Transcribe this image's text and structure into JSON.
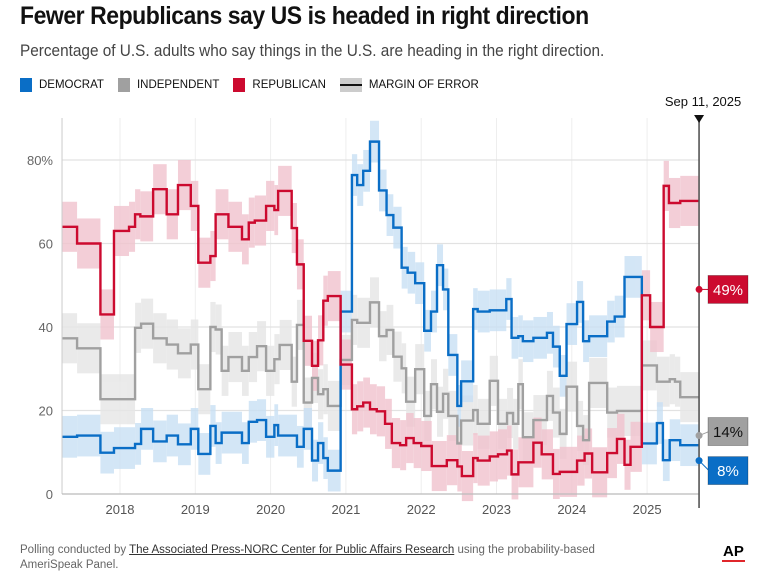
{
  "title": "Fewer Republicans say US is headed in right direction",
  "subtitle": "Percentage of U.S. adults who say things in the U.S. are heading in the right direction.",
  "legend": [
    {
      "label": "DEMOCRAT",
      "color": "#0a6ec6"
    },
    {
      "label": "INDEPENDENT",
      "color": "#a0a0a0"
    },
    {
      "label": "REPUBLICAN",
      "color": "#cc0a2f"
    },
    {
      "label": "MARGIN OF ERROR"
    }
  ],
  "footer": {
    "prefix": "Polling conducted by ",
    "link": "The Associated Press-NORC Center for Public Affairs Research",
    "suffix": " using the probability-based AmeriSpeak Panel.",
    "logo": "AP"
  },
  "chart_data": {
    "type": "line",
    "step": true,
    "title": "Fewer Republicans say US is headed in right direction",
    "xlim": [
      2017.23,
      2025.7
    ],
    "ylim": [
      0,
      90
    ],
    "x_ticks": [
      "2018",
      "2019",
      "2020",
      "2021",
      "2022",
      "2023",
      "2024",
      "2025"
    ],
    "y_ticks": [
      {
        "value": 0,
        "label": "0"
      },
      {
        "value": 20,
        "label": "20"
      },
      {
        "value": 40,
        "label": "40"
      },
      {
        "value": 60,
        "label": "60"
      },
      {
        "value": 80,
        "label": "80%"
      }
    ],
    "grid": true,
    "legend_placement": "top-left",
    "marker": {
      "label": "Sep 11, 2025",
      "x": 2025.69
    },
    "series": [
      {
        "name": "INDEPENDENT",
        "color": "#a0a0a0",
        "band_color": "#e6e6e6",
        "moe": 6,
        "end_label": "14%",
        "end_value": 14,
        "points": [
          [
            2017.23,
            37.3
          ],
          [
            2017.43,
            34.9
          ],
          [
            2017.74,
            22.7
          ],
          [
            2018.2,
            39.8
          ],
          [
            2018.28,
            40.8
          ],
          [
            2018.44,
            37.3
          ],
          [
            2018.62,
            35.8
          ],
          [
            2018.77,
            33.7
          ],
          [
            2018.94,
            35.8
          ],
          [
            2019.04,
            25.1
          ],
          [
            2019.2,
            40
          ],
          [
            2019.27,
            39.4
          ],
          [
            2019.35,
            29.5
          ],
          [
            2019.44,
            32.8
          ],
          [
            2019.62,
            29.5
          ],
          [
            2019.71,
            32.8
          ],
          [
            2019.82,
            35.4
          ],
          [
            2019.94,
            29.5
          ],
          [
            2020.05,
            32.3
          ],
          [
            2020.12,
            35.7
          ],
          [
            2020.28,
            26.9
          ],
          [
            2020.35,
            40.5
          ],
          [
            2020.44,
            21.9
          ],
          [
            2020.55,
            27.8
          ],
          [
            2020.63,
            23.9
          ],
          [
            2020.7,
            25.1
          ],
          [
            2020.76,
            21.1
          ],
          [
            2020.93,
            32.1
          ],
          [
            2021.08,
            41.7
          ],
          [
            2021.15,
            41
          ],
          [
            2021.32,
            45.9
          ],
          [
            2021.44,
            37.8
          ],
          [
            2021.54,
            39.3
          ],
          [
            2021.63,
            32.9
          ],
          [
            2021.74,
            30.1
          ],
          [
            2021.8,
            22.1
          ],
          [
            2021.92,
            29.9
          ],
          [
            2022.04,
            18.7
          ],
          [
            2022.13,
            26.3
          ],
          [
            2022.21,
            19.7
          ],
          [
            2022.29,
            24
          ],
          [
            2022.36,
            18.7
          ],
          [
            2022.48,
            12.1
          ],
          [
            2022.53,
            17.6
          ],
          [
            2022.69,
            20.1
          ],
          [
            2022.75,
            16.8
          ],
          [
            2022.91,
            27.1
          ],
          [
            2023.02,
            16.8
          ],
          [
            2023.14,
            19.4
          ],
          [
            2023.22,
            16.8
          ],
          [
            2023.29,
            26.3
          ],
          [
            2023.35,
            13.6
          ],
          [
            2023.49,
            17.7
          ],
          [
            2023.67,
            23.5
          ],
          [
            2023.75,
            19.5
          ],
          [
            2023.84,
            14.4
          ],
          [
            2023.93,
            25.7
          ],
          [
            2024.07,
            16.3
          ],
          [
            2024.15,
            12.9
          ],
          [
            2024.23,
            26.6
          ],
          [
            2024.47,
            19.5
          ],
          [
            2024.6,
            19.9
          ],
          [
            2024.93,
            30.8
          ],
          [
            2025.13,
            26.9
          ],
          [
            2025.3,
            27.5
          ],
          [
            2025.37,
            26.9
          ],
          [
            2025.44,
            23.2
          ],
          [
            2025.69,
            14
          ]
        ]
      },
      {
        "name": "DEMOCRAT",
        "color": "#0a6ec6",
        "band_color": "#c9e0f4",
        "moe": 5,
        "end_label": "8%",
        "end_value": 8,
        "points": [
          [
            2017.23,
            13.7
          ],
          [
            2017.43,
            14
          ],
          [
            2017.74,
            9.9
          ],
          [
            2017.92,
            11
          ],
          [
            2018.2,
            12
          ],
          [
            2018.28,
            15.6
          ],
          [
            2018.44,
            12.6
          ],
          [
            2018.62,
            14
          ],
          [
            2018.77,
            11.9
          ],
          [
            2018.94,
            15.6
          ],
          [
            2019.04,
            9.6
          ],
          [
            2019.2,
            16.3
          ],
          [
            2019.27,
            12.2
          ],
          [
            2019.35,
            14.7
          ],
          [
            2019.62,
            12.2
          ],
          [
            2019.71,
            17.3
          ],
          [
            2019.82,
            17.7
          ],
          [
            2019.94,
            13.7
          ],
          [
            2020.05,
            16.5
          ],
          [
            2020.1,
            14
          ],
          [
            2020.35,
            11.3
          ],
          [
            2020.44,
            15.6
          ],
          [
            2020.55,
            8
          ],
          [
            2020.63,
            12.2
          ],
          [
            2020.7,
            8.6
          ],
          [
            2020.76,
            5.6
          ],
          [
            2020.93,
            43.7
          ],
          [
            2021.08,
            76.4
          ],
          [
            2021.15,
            74
          ],
          [
            2021.23,
            77.4
          ],
          [
            2021.32,
            84.4
          ],
          [
            2021.44,
            72.7
          ],
          [
            2021.54,
            66.8
          ],
          [
            2021.63,
            63.8
          ],
          [
            2021.74,
            54.2
          ],
          [
            2021.82,
            53
          ],
          [
            2021.92,
            50.5
          ],
          [
            2022.04,
            39.1
          ],
          [
            2022.13,
            43.7
          ],
          [
            2022.21,
            54.8
          ],
          [
            2022.29,
            49
          ],
          [
            2022.36,
            33.3
          ],
          [
            2022.48,
            21.1
          ],
          [
            2022.53,
            27
          ],
          [
            2022.69,
            44.3
          ],
          [
            2022.75,
            43.7
          ],
          [
            2022.91,
            44
          ],
          [
            2023.13,
            46.7
          ],
          [
            2023.2,
            37.4
          ],
          [
            2023.29,
            37.8
          ],
          [
            2023.35,
            36.6
          ],
          [
            2023.49,
            37.4
          ],
          [
            2023.67,
            38.6
          ],
          [
            2023.75,
            35.3
          ],
          [
            2023.84,
            28.3
          ],
          [
            2023.93,
            40.7
          ],
          [
            2024.07,
            46
          ],
          [
            2024.15,
            36.6
          ],
          [
            2024.23,
            37.8
          ],
          [
            2024.47,
            41.3
          ],
          [
            2024.57,
            42.5
          ],
          [
            2024.7,
            52
          ],
          [
            2024.93,
            12.1
          ],
          [
            2025.13,
            17
          ],
          [
            2025.21,
            8.1
          ],
          [
            2025.3,
            12.9
          ],
          [
            2025.44,
            11.7
          ],
          [
            2025.69,
            8
          ]
        ]
      },
      {
        "name": "REPUBLICAN",
        "color": "#cc0a2f",
        "band_color": "#f1c3ce",
        "moe": 6,
        "end_label": "49%",
        "end_value": 49,
        "points": [
          [
            2017.23,
            64
          ],
          [
            2017.43,
            60
          ],
          [
            2017.74,
            43
          ],
          [
            2017.92,
            63
          ],
          [
            2018.12,
            64
          ],
          [
            2018.2,
            67
          ],
          [
            2018.27,
            66.5
          ],
          [
            2018.44,
            73
          ],
          [
            2018.62,
            67
          ],
          [
            2018.77,
            74
          ],
          [
            2018.94,
            69
          ],
          [
            2019.04,
            55.4
          ],
          [
            2019.2,
            57
          ],
          [
            2019.27,
            67
          ],
          [
            2019.44,
            64
          ],
          [
            2019.62,
            61
          ],
          [
            2019.71,
            65
          ],
          [
            2019.79,
            65.5
          ],
          [
            2019.94,
            69
          ],
          [
            2020.05,
            68
          ],
          [
            2020.1,
            72.6
          ],
          [
            2020.28,
            63.7
          ],
          [
            2020.35,
            55
          ],
          [
            2020.44,
            36.7
          ],
          [
            2020.55,
            30.7
          ],
          [
            2020.63,
            36.8
          ],
          [
            2020.7,
            46.3
          ],
          [
            2020.76,
            47.4
          ],
          [
            2020.93,
            31
          ],
          [
            2021.08,
            20.3
          ],
          [
            2021.15,
            21
          ],
          [
            2021.23,
            21.9
          ],
          [
            2021.32,
            20.3
          ],
          [
            2021.41,
            19.8
          ],
          [
            2021.52,
            16.8
          ],
          [
            2021.61,
            12.2
          ],
          [
            2021.72,
            11.7
          ],
          [
            2021.8,
            13.4
          ],
          [
            2021.9,
            12.2
          ],
          [
            2022.0,
            11.5
          ],
          [
            2022.14,
            6.7
          ],
          [
            2022.34,
            8.1
          ],
          [
            2022.48,
            6.6
          ],
          [
            2022.54,
            4.3
          ],
          [
            2022.69,
            8.6
          ],
          [
            2022.75,
            8
          ],
          [
            2022.91,
            9
          ],
          [
            2023.02,
            9.5
          ],
          [
            2023.14,
            10.4
          ],
          [
            2023.2,
            4.7
          ],
          [
            2023.29,
            7.6
          ],
          [
            2023.49,
            12.3
          ],
          [
            2023.6,
            9.5
          ],
          [
            2023.75,
            4.8
          ],
          [
            2023.84,
            5.3
          ],
          [
            2024.07,
            8
          ],
          [
            2024.17,
            9.7
          ],
          [
            2024.27,
            5.2
          ],
          [
            2024.47,
            9.8
          ],
          [
            2024.6,
            13.2
          ],
          [
            2024.7,
            7
          ],
          [
            2024.78,
            11.3
          ],
          [
            2024.93,
            47.6
          ],
          [
            2025.04,
            40
          ],
          [
            2025.22,
            73.8
          ],
          [
            2025.29,
            69.7
          ],
          [
            2025.44,
            70.2
          ],
          [
            2025.69,
            49
          ]
        ]
      }
    ]
  }
}
